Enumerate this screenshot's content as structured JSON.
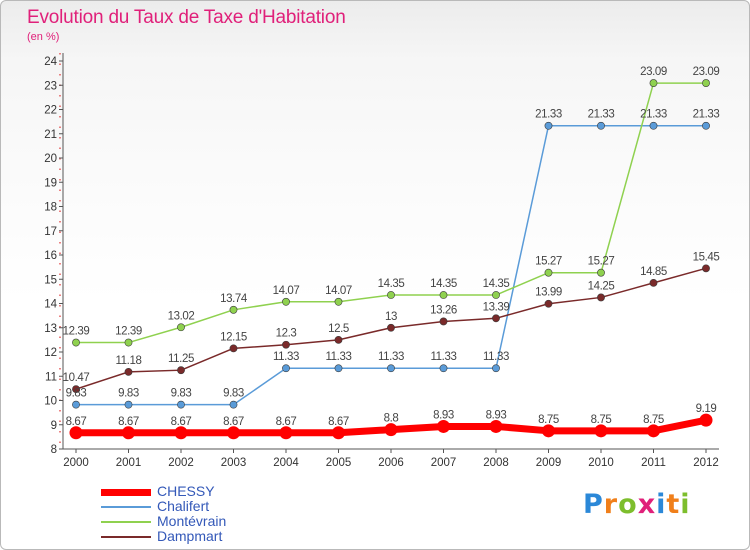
{
  "title": "Evolution du Taux de Taxe d'Habitation",
  "subtitle": "(en %)",
  "logo": {
    "text": "Proxiti",
    "letters": [
      "P",
      "r",
      "o",
      "x",
      "i",
      "t",
      "i"
    ],
    "colors": [
      "#2b88d8",
      "#f07f1a",
      "#7dbe2d",
      "#e0207a",
      "#2b88d8",
      "#f07f1a",
      "#7dbe2d"
    ]
  },
  "chart_data": {
    "type": "line",
    "title": "Evolution du Taux de Taxe d'Habitation",
    "ylabel": "(en %)",
    "xlabel": "",
    "x": [
      "2000",
      "2001",
      "2002",
      "2003",
      "2004",
      "2005",
      "2006",
      "2007",
      "2008",
      "2009",
      "2010",
      "2011",
      "2012"
    ],
    "ylim": [
      8,
      24
    ],
    "yticks": [
      "8",
      "9",
      "10",
      "11",
      "12",
      "13",
      "14",
      "15",
      "16",
      "17",
      "18",
      "19",
      "20",
      "21",
      "22",
      "23",
      "24"
    ],
    "grid": false,
    "legend_position": "bottom-left",
    "series": [
      {
        "name": "CHESSY",
        "color": "#ff0000",
        "values": [
          8.67,
          8.67,
          8.67,
          8.67,
          8.67,
          8.67,
          8.8,
          8.93,
          8.93,
          8.75,
          8.75,
          8.75,
          9.19
        ],
        "labels": [
          "8.67",
          "8.67",
          "8.67",
          "8.67",
          "8.67",
          "8.67",
          "8.8",
          "8.93",
          "8.93",
          "8.75",
          "8.75",
          "8.75",
          "9.19"
        ]
      },
      {
        "name": "Chalifert",
        "color": "#5a9bd8",
        "values": [
          9.83,
          9.83,
          9.83,
          9.83,
          11.33,
          11.33,
          11.33,
          11.33,
          11.33,
          21.33,
          21.33,
          21.33,
          21.33
        ],
        "labels": [
          "9.83",
          "9.83",
          "9.83",
          "9.83",
          "11.33",
          "11.33",
          "11.33",
          "11.33",
          "11.33",
          "21.33",
          "21.33",
          "21.33",
          "21.33"
        ]
      },
      {
        "name": "Montévrain",
        "color": "#8fd14f",
        "values": [
          12.39,
          12.39,
          13.02,
          13.74,
          14.07,
          14.07,
          14.35,
          14.35,
          14.35,
          15.27,
          15.27,
          23.09,
          23.09
        ],
        "labels": [
          "12.39",
          "12.39",
          "13.02",
          "13.74",
          "14.07",
          "14.07",
          "14.35",
          "14.35",
          "14.35",
          "15.27",
          "15.27",
          "23.09",
          "23.09"
        ]
      },
      {
        "name": "Dampmart",
        "color": "#7a2a2a",
        "values": [
          10.47,
          11.18,
          11.25,
          12.15,
          12.3,
          12.5,
          13,
          13.26,
          13.39,
          13.99,
          14.25,
          14.85,
          15.45
        ],
        "labels": [
          "10.47",
          "11.18",
          "11.25",
          "12.15",
          "12.3",
          "12.5",
          "13",
          "13.26",
          "13.39",
          "13.99",
          "14.25",
          "14.85",
          "15.45"
        ]
      }
    ]
  }
}
